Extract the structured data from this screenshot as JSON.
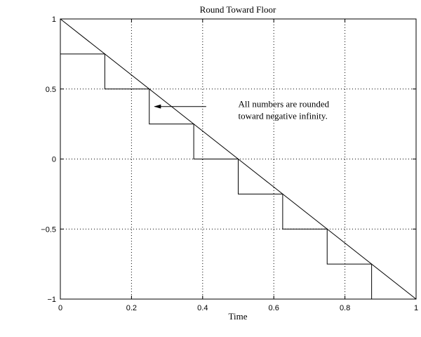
{
  "chart_data": {
    "type": "line",
    "title": "Round Toward Floor",
    "xlabel": "Time",
    "ylabel": "",
    "xlim": [
      0,
      1
    ],
    "ylim": [
      -1,
      1
    ],
    "grid": true,
    "xticks": [
      0,
      0.2,
      0.4,
      0.6,
      0.8,
      1
    ],
    "xtick_labels": [
      "0",
      "0.2",
      "0.4",
      "0.6",
      "0.8",
      "1"
    ],
    "yticks": [
      -1,
      -0.5,
      0,
      0.5,
      1
    ],
    "ytick_labels": [
      "−1",
      "−0.5",
      "0",
      "0.5",
      "1"
    ],
    "series": [
      {
        "style": "line",
        "x": [
          0,
          1
        ],
        "y": [
          1,
          -1
        ]
      },
      {
        "style": "step",
        "x": [
          0,
          0.125,
          0.25,
          0.375,
          0.5,
          0.625,
          0.75,
          0.875,
          1
        ],
        "y": [
          0.75,
          0.5,
          0.25,
          0,
          -0.25,
          -0.5,
          -0.75,
          -1,
          -1
        ]
      }
    ],
    "annotations": [
      {
        "lines": [
          "All numbers are rounded",
          "toward negative infinity."
        ],
        "text_at": [
          0.5,
          0.39
        ],
        "arrow_from": [
          0.41,
          0.375
        ],
        "arrow_to": [
          0.265,
          0.375
        ]
      }
    ]
  },
  "colors": {
    "line": "#000000",
    "grid": "#000000",
    "axes": "#000000",
    "background": "#ffffff"
  }
}
